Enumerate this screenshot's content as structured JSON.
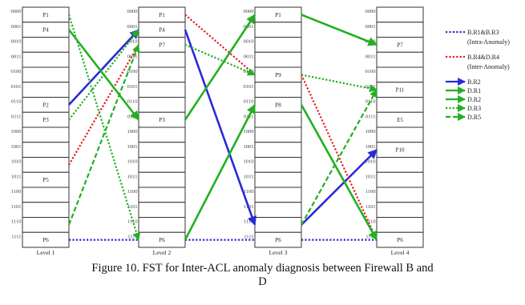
{
  "colors": {
    "blue": "#2a2ad6",
    "red": "#e02020",
    "green": "#22b022"
  },
  "levels": [
    {
      "label": "Level 1",
      "codes": [
        "0000",
        "0001",
        "0010",
        "0011",
        "0100",
        "0101",
        "0110",
        "0111",
        "1000",
        "1001",
        "1010",
        "1011",
        "1100",
        "1101",
        "1110",
        "1111"
      ],
      "nodes": {
        "1": "P1",
        "2": "P4",
        "7": "P2",
        "8": "P3",
        "12": "P5",
        "16": "P6"
      }
    },
    {
      "label": "Level 2",
      "codes": [
        "0000",
        "0001",
        "0010",
        "0011",
        "0100",
        "0101",
        "0110",
        "0111",
        "1000",
        "1001",
        "1010",
        "1011",
        "1100",
        "1101",
        "1110",
        "1111"
      ],
      "nodes": {
        "1": "P1",
        "2": "P4",
        "3": "P7",
        "8": "P3",
        "16": "P6"
      }
    },
    {
      "label": "Level 3",
      "codes": [
        "0000",
        "0001",
        "0010",
        "0011",
        "0100",
        "0101",
        "0110",
        "0111",
        "1000",
        "1001",
        "1010",
        "1011",
        "1100",
        "1101",
        "1110",
        "1111"
      ],
      "nodes": {
        "1": "P1",
        "5": "P9",
        "7": "P8",
        "16": "P6"
      }
    },
    {
      "label": "Level 4",
      "codes": [
        "0000",
        "0001",
        "0010",
        "0011",
        "0100",
        "0101",
        "0110",
        "0111",
        "1000",
        "1001",
        "1010",
        "1011",
        "1100",
        "1101",
        "1110",
        "1111"
      ],
      "nodes": {
        "3": "P7",
        "6": "P11",
        "8": "E5",
        "10": "P10",
        "16": "P6"
      }
    }
  ],
  "legend": [
    {
      "label": "B.R1&B.R3",
      "sub": "(Intra-Anomaly)",
      "color": "blue",
      "style": "dotted",
      "head": false
    },
    {
      "label": "B.R4&D.R4",
      "sub": "(Inter-Anomaly)",
      "color": "red",
      "style": "dotted",
      "head": false
    },
    {
      "label": "B.R2",
      "sub": "",
      "color": "blue",
      "style": "solid",
      "head": true
    },
    {
      "label": "D.R1",
      "sub": "",
      "color": "green",
      "style": "solid",
      "head": true
    },
    {
      "label": "D.R2",
      "sub": "",
      "color": "green",
      "style": "solid",
      "head": true
    },
    {
      "label": "D.R3",
      "sub": "",
      "color": "green",
      "style": "dotted",
      "head": true
    },
    {
      "label": "D.R5",
      "sub": "",
      "color": "green",
      "style": "dashed",
      "head": true
    }
  ],
  "edges": [
    {
      "from": [
        1,
        7
      ],
      "to": [
        2,
        2
      ],
      "color": "blue",
      "style": "solid"
    },
    {
      "from": [
        2,
        2
      ],
      "to": [
        3,
        15
      ],
      "color": "blue",
      "style": "solid"
    },
    {
      "from": [
        3,
        15
      ],
      "to": [
        4,
        10
      ],
      "color": "blue",
      "style": "solid"
    },
    {
      "from": [
        1,
        16
      ],
      "to": [
        2,
        16
      ],
      "color": "blue",
      "style": "dotted"
    },
    {
      "from": [
        2,
        16
      ],
      "to": [
        3,
        16
      ],
      "color": "blue",
      "style": "dotted"
    },
    {
      "from": [
        3,
        16
      ],
      "to": [
        4,
        16
      ],
      "color": "blue",
      "style": "dotted"
    },
    {
      "from": [
        1,
        11
      ],
      "to": [
        2,
        3
      ],
      "color": "red",
      "style": "dotted"
    },
    {
      "from": [
        2,
        1
      ],
      "to": [
        3,
        5
      ],
      "color": "red",
      "style": "dotted"
    },
    {
      "from": [
        3,
        5
      ],
      "to": [
        4,
        16
      ],
      "color": "red",
      "style": "dotted"
    },
    {
      "from": [
        1,
        1
      ],
      "to": [
        2,
        16
      ],
      "color": "green",
      "style": "dotted"
    },
    {
      "from": [
        1,
        2
      ],
      "to": [
        2,
        8
      ],
      "color": "green",
      "style": "solid"
    },
    {
      "from": [
        2,
        8
      ],
      "to": [
        3,
        1
      ],
      "color": "green",
      "style": "solid"
    },
    {
      "from": [
        3,
        1
      ],
      "to": [
        4,
        3
      ],
      "color": "green",
      "style": "solid"
    },
    {
      "from": [
        2,
        16
      ],
      "to": [
        3,
        7
      ],
      "color": "green",
      "style": "solid"
    },
    {
      "from": [
        3,
        7
      ],
      "to": [
        4,
        16
      ],
      "color": "green",
      "style": "solid"
    },
    {
      "from": [
        1,
        8
      ],
      "to": [
        2,
        2
      ],
      "color": "green",
      "style": "dotted"
    },
    {
      "from": [
        2,
        3
      ],
      "to": [
        3,
        5
      ],
      "color": "green",
      "style": "dotted"
    },
    {
      "from": [
        3,
        5
      ],
      "to": [
        4,
        6
      ],
      "color": "green",
      "style": "dotted"
    },
    {
      "from": [
        1,
        15
      ],
      "to": [
        2,
        3
      ],
      "color": "green",
      "style": "dashed"
    },
    {
      "from": [
        3,
        15
      ],
      "to": [
        4,
        6
      ],
      "color": "green",
      "style": "dashed"
    }
  ],
  "caption": {
    "line1": "Figure 10.  FST for Inter-ACL anomaly diagnosis between Firewall B and",
    "line2": "D"
  }
}
